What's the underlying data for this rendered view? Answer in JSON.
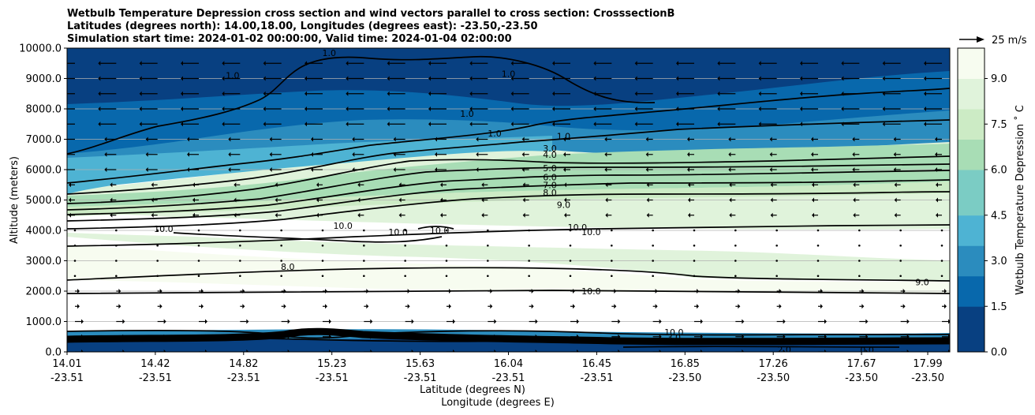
{
  "chart_data": {
    "type": "contour",
    "title_lines": [
      "Wetbulb Temperature Depression cross section and wind vectors parallel to cross section: CrosssectionB",
      "Latitudes (degrees north): 14.00,18.00, Longitudes (degrees east): -23.50,-23.50",
      "Simulation start time: 2024-01-02 00:00:00, Valid time: 2024-01-04 02:00:00"
    ],
    "ylabel": "Altitude (meters)",
    "xlabel_lat": "Latitude (degrees N)",
    "xlabel_lon": "Longitude (degrees E)",
    "ylim": [
      0,
      10000
    ],
    "yticks": [
      "0.0",
      "1000.0",
      "2000.0",
      "3000.0",
      "4000.0",
      "5000.0",
      "6000.0",
      "7000.0",
      "8000.0",
      "9000.0",
      "10000.0"
    ],
    "xticks": [
      {
        "lat": "14.01",
        "lon": "-23.51",
        "frac": 0.0
      },
      {
        "lat": "14.42",
        "lon": "-23.51",
        "frac": 0.1
      },
      {
        "lat": "14.82",
        "lon": "-23.51",
        "frac": 0.2
      },
      {
        "lat": "15.23",
        "lon": "-23.51",
        "frac": 0.3
      },
      {
        "lat": "15.63",
        "lon": "-23.51",
        "frac": 0.4
      },
      {
        "lat": "16.04",
        "lon": "-23.51",
        "frac": 0.5
      },
      {
        "lat": "16.45",
        "lon": "-23.51",
        "frac": 0.6
      },
      {
        "lat": "16.85",
        "lon": "-23.50",
        "frac": 0.7
      },
      {
        "lat": "17.26",
        "lon": "-23.50",
        "frac": 0.8
      },
      {
        "lat": "17.67",
        "lon": "-23.50",
        "frac": 0.9
      },
      {
        "lat": "17.99",
        "lon": "-23.50",
        "frac": 0.975
      }
    ],
    "colorbar": {
      "label": "Wetbulb Temperature Depression ˚ C",
      "range": [
        0,
        10
      ],
      "ticks": [
        "0.0",
        "1.5",
        "3.0",
        "4.5",
        "6.0",
        "7.5",
        "9.0"
      ],
      "tick_values": [
        0,
        1.5,
        3,
        4.5,
        6,
        7.5,
        9
      ],
      "colors": [
        "#084081",
        "#0868ac",
        "#2b8cbe",
        "#4eb3d3",
        "#7bccc4",
        "#a8ddb5",
        "#ccebc5",
        "#e0f3db",
        "#f7fcf0"
      ]
    },
    "quiver_key": {
      "label": "25 m/s"
    },
    "contour_labels": [
      {
        "text": "1.0",
        "x": 0.95,
        "alt": 9850
      },
      {
        "text": "1.0",
        "x": 0.6,
        "alt": 9100
      },
      {
        "text": "1.0",
        "x": 1.55,
        "alt": 7200
      },
      {
        "text": "1.0",
        "x": 1.6,
        "alt": 9150
      },
      {
        "text": "1.0",
        "x": 1.45,
        "alt": 7850
      },
      {
        "text": "1.0",
        "x": 1.8,
        "alt": 7100
      },
      {
        "text": "3.0",
        "x": 1.75,
        "alt": 6700
      },
      {
        "text": "4.0",
        "x": 1.75,
        "alt": 6500
      },
      {
        "text": "5.0",
        "x": 1.75,
        "alt": 6050
      },
      {
        "text": "6.0",
        "x": 1.75,
        "alt": 5750
      },
      {
        "text": "7.0",
        "x": 1.75,
        "alt": 5500
      },
      {
        "text": "8.0",
        "x": 1.75,
        "alt": 5250
      },
      {
        "text": "9.0",
        "x": 1.8,
        "alt": 4850
      },
      {
        "text": "10.0",
        "x": 0.35,
        "alt": 4050
      },
      {
        "text": "10.0",
        "x": 1.0,
        "alt": 4150
      },
      {
        "text": "10.0",
        "x": 1.2,
        "alt": 3950
      },
      {
        "text": "10.0",
        "x": 1.35,
        "alt": 4000
      },
      {
        "text": "10.0",
        "x": 1.9,
        "alt": 3950
      },
      {
        "text": "10.0",
        "x": 1.85,
        "alt": 4100
      },
      {
        "text": "8.0",
        "x": 0.8,
        "alt": 2800
      },
      {
        "text": "9.0",
        "x": 3.1,
        "alt": 2300
      },
      {
        "text": "10.0",
        "x": 1.9,
        "alt": 2000
      },
      {
        "text": "10.0",
        "x": 2.2,
        "alt": 650
      },
      {
        "text": "3.0",
        "x": 2.2,
        "alt": 480
      },
      {
        "text": "2.0",
        "x": 2.6,
        "alt": 80
      },
      {
        "text": "0.0",
        "x": 2.9,
        "alt": 60
      }
    ]
  }
}
